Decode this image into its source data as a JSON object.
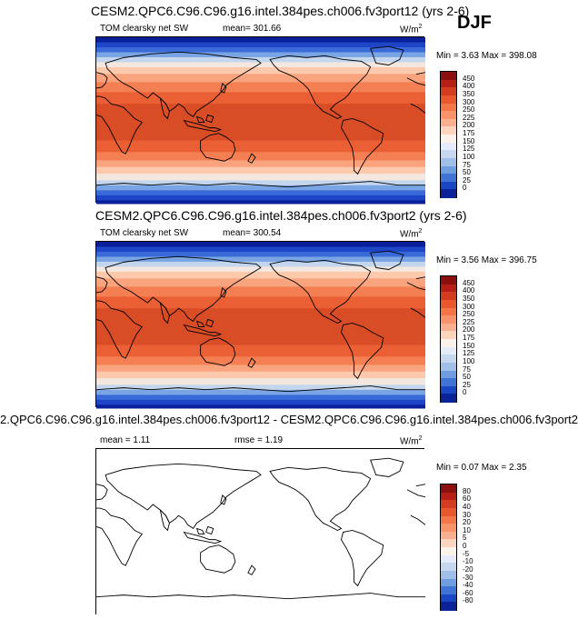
{
  "season": "DJF",
  "panels": [
    {
      "title": "CESM2.QPC6.C96.C96.g16.intel.384pes.ch006.fv3port12 (yrs 2-6)",
      "left_label": "TOM clearsky net SW",
      "mid_label": "mean= 301.66",
      "units": "W/m",
      "units_sup": "2",
      "minmax": "Min =  3.63 Max = 398.08",
      "levels": [
        "450",
        "400",
        "350",
        "300",
        "250",
        "225",
        "200",
        "175",
        "150",
        "125",
        "100",
        "75",
        "50",
        "25",
        "0"
      ]
    },
    {
      "title": "CESM2.QPC6.C96.C96.g16.intel.384pes.ch006.fv3port2 (yrs 2-6)",
      "left_label": "TOM clearsky net SW",
      "mid_label": "mean= 300.54",
      "units": "W/m",
      "units_sup": "2",
      "minmax": "Min =  3.56 Max = 396.75",
      "levels": [
        "450",
        "400",
        "350",
        "300",
        "250",
        "225",
        "200",
        "175",
        "150",
        "125",
        "100",
        "75",
        "50",
        "25",
        "0"
      ]
    },
    {
      "title": "2.QPC6.C96.C96.g16.intel.384pes.ch006.fv3port12 - CESM2.QPC6.C96.C96.g16.intel.384pes.ch006.fv3port2",
      "left_label": "mean =   1.11",
      "mid_label": "rmse =   1.19",
      "units": "W/m",
      "units_sup": "2",
      "minmax": "Min =  0.07 Max =  2.35",
      "levels": [
        "80",
        "60",
        "40",
        "30",
        "20",
        "10",
        "5",
        "0",
        "-5",
        "-10",
        "-20",
        "-30",
        "-40",
        "-60",
        "-80"
      ]
    }
  ],
  "colors": {
    "colorbar": [
      "#8b0f0f",
      "#b61e18",
      "#d43c22",
      "#e9582c",
      "#f47648",
      "#f8936a",
      "#fab090",
      "#fdd4bd",
      "#fdf2ea",
      "#e3ecf8",
      "#c5d8f0",
      "#9fbfe8",
      "#6f9de0",
      "#3f73d6",
      "#1a46c4",
      "#0b2398"
    ],
    "field_bands": [
      [
        0.0,
        "#0a1f9a"
      ],
      [
        0.03,
        "#1e45c7"
      ],
      [
        0.06,
        "#3a6ad8"
      ],
      [
        0.09,
        "#7aa5e4"
      ],
      [
        0.12,
        "#c3d6ee"
      ],
      [
        0.15,
        "#f3e7df"
      ],
      [
        0.18,
        "#fcc9ad"
      ],
      [
        0.22,
        "#f9a47e"
      ],
      [
        0.27,
        "#f47f53"
      ],
      [
        0.33,
        "#ea6034"
      ],
      [
        0.4,
        "#d94d26"
      ],
      [
        0.62,
        "#ea6034"
      ],
      [
        0.69,
        "#f47f53"
      ],
      [
        0.74,
        "#f9a47e"
      ],
      [
        0.78,
        "#fcc9ad"
      ],
      [
        0.82,
        "#f3e7df"
      ],
      [
        0.86,
        "#c3d6ee"
      ],
      [
        0.89,
        "#7aa5e4"
      ],
      [
        0.92,
        "#3a6ad8"
      ],
      [
        0.95,
        "#1e45c7"
      ],
      [
        0.98,
        "#0a1f9a"
      ]
    ]
  }
}
